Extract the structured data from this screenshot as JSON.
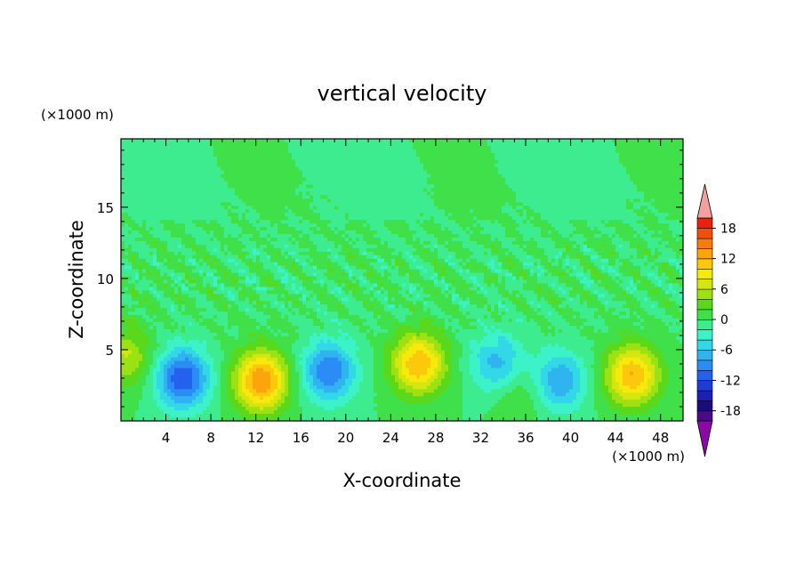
{
  "chart_data": {
    "type": "heatmap",
    "title": "vertical velocity",
    "xlabel": "X-coordinate",
    "ylabel": "Z-coordinate",
    "x_unit": "(×1000 m)",
    "y_unit": "(×1000 m)",
    "xlim": [
      0,
      50
    ],
    "ylim": [
      0,
      19.8
    ],
    "x_ticks": [
      4,
      8,
      12,
      16,
      20,
      24,
      28,
      32,
      36,
      40,
      44,
      48
    ],
    "x_tick_labels": [
      "4",
      "8",
      "12",
      "16",
      "20",
      "24",
      "28",
      "32",
      "36",
      "40",
      "44",
      "48"
    ],
    "y_ticks": [
      5,
      10,
      15
    ],
    "y_tick_labels": [
      "5",
      "10",
      "15"
    ],
    "colorbar": {
      "range": [
        -20,
        20
      ],
      "step": 2,
      "extend": "both",
      "tick_values": [
        18,
        12,
        6,
        0,
        -6,
        -12,
        -18
      ],
      "tick_labels": [
        "18",
        "12",
        "6",
        "0",
        "-6",
        "-12",
        "-18"
      ],
      "colors": [
        "#4a0a8a",
        "#1a0c7a",
        "#1c20b0",
        "#1f3ad6",
        "#2462ee",
        "#2b8cf5",
        "#2fb4f0",
        "#33d8e6",
        "#3cf2c8",
        "#3eec90",
        "#40e04a",
        "#5ad81c",
        "#9ce212",
        "#d4e612",
        "#f6ea0c",
        "#fcc80c",
        "#fca40c",
        "#f67c0e",
        "#f0500e",
        "#e8220e"
      ],
      "over_color": "#f2a0a0",
      "under_color": "#8a0aa6"
    },
    "cells": [
      {
        "x": 5.5,
        "z": 3.0,
        "w": -12
      },
      {
        "x": 12.5,
        "z": 2.8,
        "w": 14
      },
      {
        "x": 18.5,
        "z": 3.5,
        "w": -10
      },
      {
        "x": 26.5,
        "z": 4.0,
        "w": 12
      },
      {
        "x": 33.5,
        "z": 4.0,
        "w": -7
      },
      {
        "x": 35.5,
        "z": 2.0,
        "w": 3
      },
      {
        "x": 39.0,
        "z": 2.8,
        "w": -8
      },
      {
        "x": 45.5,
        "z": 3.2,
        "w": 12
      },
      {
        "x": 0.5,
        "z": 4.5,
        "w": 6
      }
    ]
  }
}
